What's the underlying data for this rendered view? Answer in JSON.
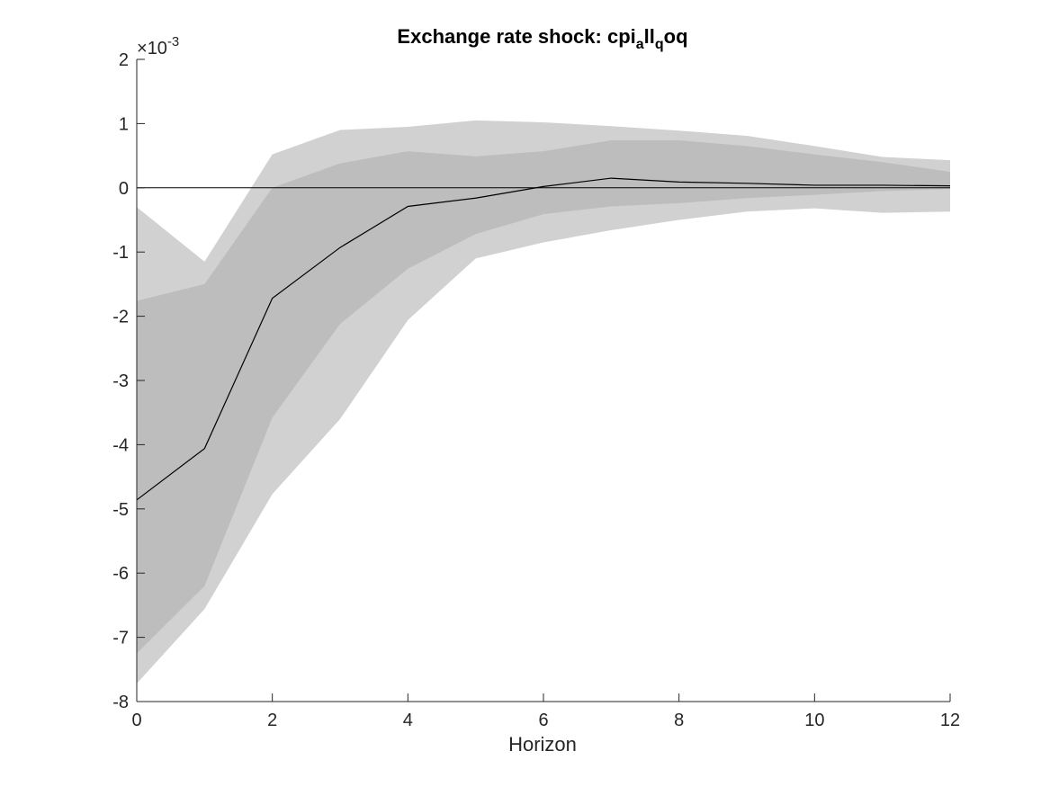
{
  "chart_data": {
    "type": "area",
    "title": {
      "main": "Exchange rate shock: cpi",
      "sub1": "a",
      "mid": "ll",
      "sub2": "q",
      "end": "oq"
    },
    "xlabel": "Horizon",
    "ylabel": "",
    "y_exponent": {
      "times": "×",
      "base": "10",
      "power": "-3"
    },
    "xlim": [
      0,
      12
    ],
    "ylim": [
      -8,
      2
    ],
    "xticks": [
      0,
      2,
      4,
      6,
      8,
      10,
      12
    ],
    "yticks": [
      -8,
      -7,
      -6,
      -5,
      -4,
      -3,
      -2,
      -1,
      0,
      1,
      2
    ],
    "grid": false,
    "x": [
      0,
      1,
      2,
      3,
      4,
      5,
      6,
      7,
      8,
      9,
      10,
      11,
      12
    ],
    "series": [
      {
        "role": "outer_upper",
        "values": [
          -0.3,
          -1.15,
          0.52,
          0.9,
          0.95,
          1.05,
          1.02,
          0.96,
          0.89,
          0.81,
          0.65,
          0.48,
          0.43
        ]
      },
      {
        "role": "outer_lower",
        "values": [
          -7.72,
          -6.56,
          -4.77,
          -3.6,
          -2.06,
          -1.1,
          -0.85,
          -0.66,
          -0.5,
          -0.37,
          -0.32,
          -0.39,
          -0.37
        ]
      },
      {
        "role": "inner_upper",
        "values": [
          -1.76,
          -1.5,
          0.0,
          0.38,
          0.57,
          0.49,
          0.57,
          0.74,
          0.74,
          0.65,
          0.52,
          0.4,
          0.25
        ]
      },
      {
        "role": "inner_lower",
        "values": [
          -7.25,
          -6.2,
          -3.58,
          -2.12,
          -1.26,
          -0.72,
          -0.41,
          -0.29,
          -0.24,
          -0.16,
          -0.11,
          -0.05,
          -0.02
        ]
      },
      {
        "role": "median",
        "values": [
          -4.86,
          -4.06,
          -1.72,
          -0.93,
          -0.29,
          -0.16,
          0.02,
          0.15,
          0.09,
          0.07,
          0.04,
          0.04,
          0.03
        ]
      }
    ],
    "zero_line": 0,
    "colors": {
      "outer_band": "#d1d1d1",
      "inner_band": "#bdbdbd",
      "line": "#000000",
      "axis": "#262626"
    }
  }
}
